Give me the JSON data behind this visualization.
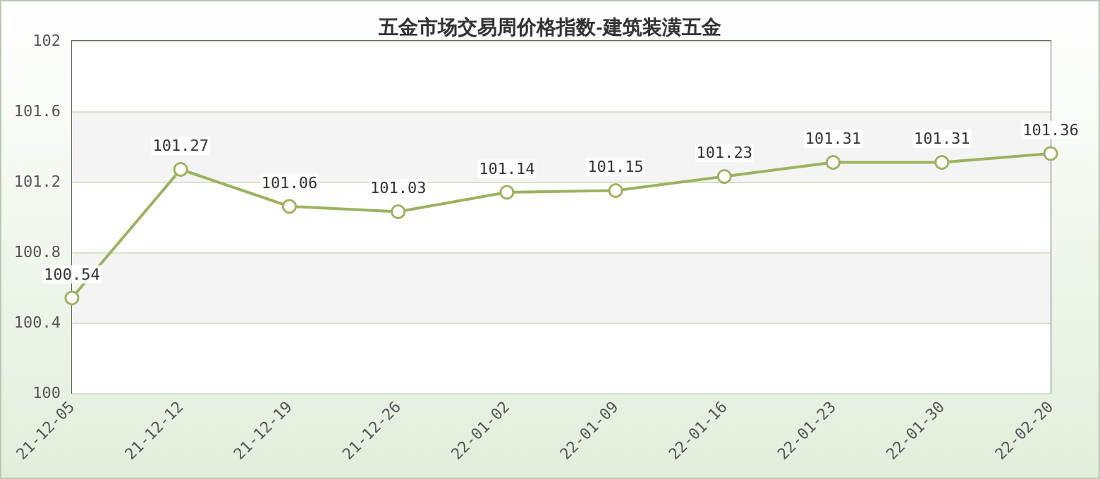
{
  "chart_data": {
    "type": "line",
    "title": "五金市场交易周价格指数-建筑装潢五金",
    "categories": [
      "21-12-05",
      "21-12-12",
      "21-12-19",
      "21-12-26",
      "22-01-02",
      "22-01-09",
      "22-01-16",
      "22-01-23",
      "22-01-30",
      "22-02-20"
    ],
    "series": [
      {
        "color": "#9bb35f",
        "values": [
          100.54,
          101.27,
          101.06,
          101.03,
          101.14,
          101.15,
          101.23,
          101.31,
          101.31,
          101.36
        ]
      }
    ],
    "ylim": [
      100,
      102
    ],
    "yticks": [
      100,
      100.4,
      100.8,
      101.2,
      101.6,
      102
    ],
    "grid": "y",
    "marker": "circle",
    "line_style": "solid",
    "data_labels": true
  }
}
